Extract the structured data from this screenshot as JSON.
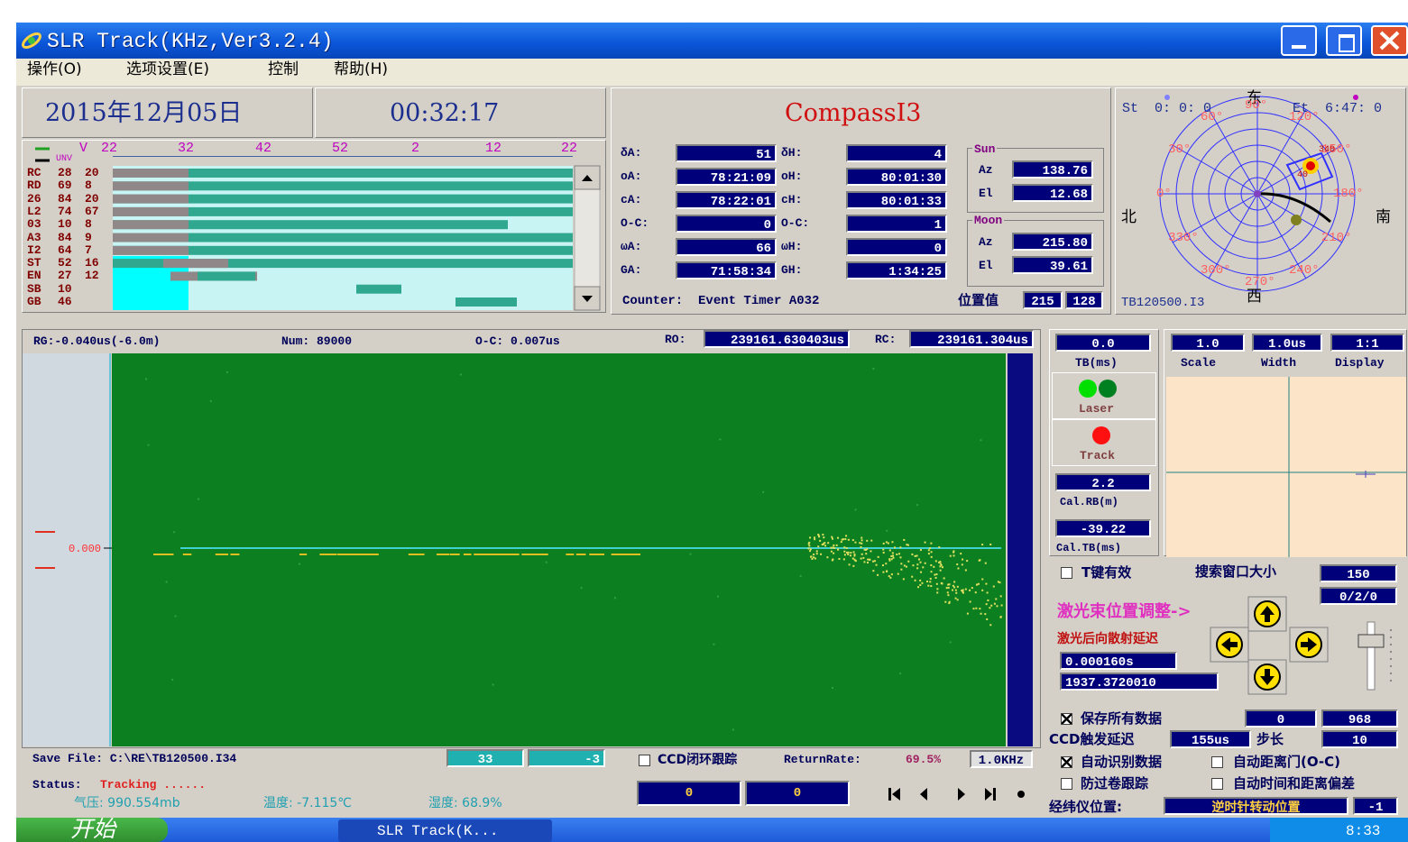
{
  "title_bar": {
    "title": "SLR Track(KHz,Ver3.2.4)"
  },
  "menu": [
    "操作(O)",
    "选项设置(E)",
    "控制",
    "帮助(H)"
  ],
  "header": {
    "date": "2015年12月05日",
    "time": "00:32:17",
    "target": "CompassI3"
  },
  "pass_list": {
    "hours": [
      "22",
      "32",
      "42",
      "52",
      "2",
      "12",
      "22"
    ],
    "legend": [
      "V",
      "UNV"
    ],
    "rows": [
      [
        "RC",
        "28",
        "20"
      ],
      [
        "RD",
        "69",
        "8"
      ],
      [
        "26",
        "84",
        "20"
      ],
      [
        "L2",
        "74",
        "67"
      ],
      [
        "03",
        "10",
        "8"
      ],
      [
        "A3",
        "84",
        "9"
      ],
      [
        "I2",
        "64",
        "7"
      ],
      [
        "ST",
        "52",
        "16"
      ],
      [
        "EN",
        "27",
        "12"
      ],
      [
        "SB",
        "10"
      ],
      [
        "GB",
        "46"
      ]
    ]
  },
  "angles": {
    "rows": [
      [
        "δA:",
        "51",
        "δH:",
        "4"
      ],
      [
        "oA:",
        "78:21:09",
        "oH:",
        "80:01:30"
      ],
      [
        "cA:",
        "78:22:01",
        "cH:",
        "80:01:33"
      ],
      [
        "O-C:",
        "0",
        "O-C:",
        "1"
      ],
      [
        "ωA:",
        "66",
        "ωH:",
        "0"
      ],
      [
        "GA:",
        "71:58:34",
        "GH:",
        "1:34:25"
      ]
    ],
    "counter": "Counter:  Event Timer A032",
    "position_label": "位置值",
    "position": [
      "215",
      "128"
    ]
  },
  "sun": {
    "label": "Sun",
    "az_label": "Az",
    "az": "138.76",
    "el_label": "El",
    "el": "12.68"
  },
  "moon": {
    "label": "Moon",
    "az_label": "Az",
    "az": "215.80",
    "el_label": "El",
    "el": "39.61"
  },
  "sky": {
    "start": "St  0: 0: 0",
    "end": "Et  6:47: 0",
    "east": "东",
    "north": "北",
    "south": "南",
    "west": "西",
    "azimuth_labels": [
      "0°",
      "30°",
      "60°",
      "90°",
      "120°",
      "150°",
      "180°",
      "210°",
      "240°",
      "270°",
      "300°",
      "330°"
    ],
    "marker_labels": [
      "340",
      "40"
    ],
    "file": "TB120500.I3"
  },
  "range": {
    "rg": "RG:-0.040us(-6.0m)",
    "num": "Num: 89000",
    "oc": "O-C: 0.007us",
    "ro_label": "RO:",
    "ro": "239161.630403us",
    "rc_label": "RC:",
    "rc": "239161.304us",
    "zero": "0.000"
  },
  "controls": {
    "tb": "0.0",
    "tb_label": "TB(ms)",
    "scale": "1.0",
    "scale_label": "Scale",
    "width": "1.0us",
    "width_label": "Width",
    "display": "1:1",
    "display_label": "Display",
    "laser": "Laser",
    "track": "Track",
    "cal_rb": "2.2",
    "cal_rb_label": "Cal.RB(m)",
    "cal_tb": "-39.22",
    "cal_tb_label": "Cal.TB(ms)"
  },
  "settings": {
    "t_key": "T键有效",
    "search_label": "搜索窗口大小",
    "search": "150",
    "search2": "0/2/0",
    "beam_adjust": "激光束位置调整->",
    "backscatter_label": "激光后向散射延迟",
    "backscatter": "0.000160s",
    "backscatter2": "1937.3720010",
    "save_all": "保存所有数据",
    "save_values": [
      "0",
      "968"
    ],
    "ccd_delay_label": "CCD触发延迟",
    "ccd_delay": "155us",
    "step_label": "步长",
    "step": "10",
    "auto_detect": "自动识别数据",
    "auto_gate": "自动距离门(O-C)",
    "anti_wind": "防过卷跟踪",
    "auto_bias": "自动时间和距离偏差",
    "theodolite_label": "经纬仪位置:",
    "theodolite": "逆时针转动位置",
    "theodolite_value": "-1"
  },
  "bottom": {
    "save_file": "Save File: C:\\RE\\TB120500.I34",
    "counts": [
      "33",
      "-3"
    ],
    "ccd_loop": "CCD闭环跟踪",
    "return_rate_label": "ReturnRate:",
    "return_rate": "69.5%",
    "frequency": "1.0KHz",
    "status_label": "Status:",
    "status": "Tracking ......",
    "pressure": "气压: 990.554mb",
    "temperature": "温度: -7.115℃",
    "humidity": "湿度: 68.9%",
    "counters": [
      "0",
      "0"
    ]
  },
  "taskbar": {
    "start": "开始",
    "task": "SLR Track(K...",
    "clock": "8:33"
  }
}
